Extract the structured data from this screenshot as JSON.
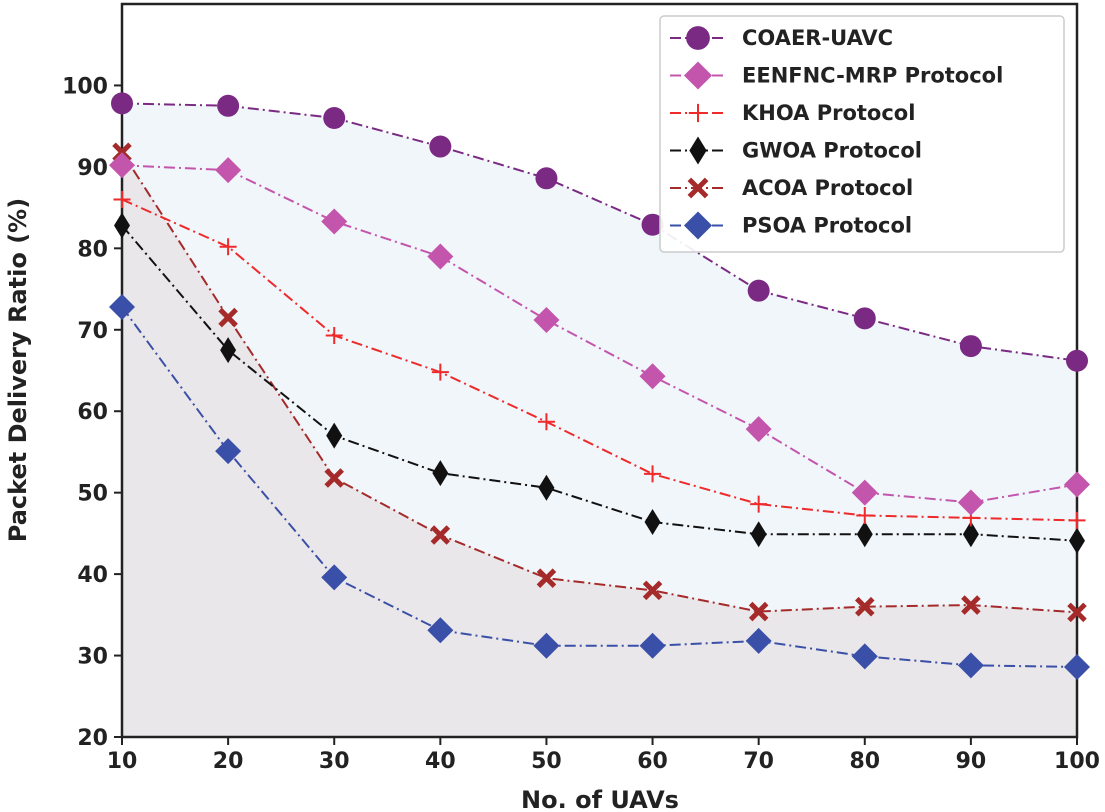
{
  "chart_data": {
    "type": "line",
    "title": "",
    "xlabel": "No. of UAVs",
    "ylabel": "Packet Delivery Ratio (%)",
    "xlim": [
      10,
      100
    ],
    "ylim": [
      20,
      110
    ],
    "x": [
      10,
      20,
      30,
      40,
      50,
      60,
      70,
      80,
      90,
      100
    ],
    "xticks": [
      "10",
      "20",
      "30",
      "40",
      "50",
      "60",
      "70",
      "80",
      "90",
      "100"
    ],
    "yticks": [
      "20",
      "30",
      "40",
      "50",
      "60",
      "70",
      "80",
      "90",
      "100"
    ],
    "grid": false,
    "legend_position": "top-right",
    "series": [
      {
        "name": "COAER-UAVC",
        "color": "#7b2a84",
        "marker": "circle",
        "values": [
          97.8,
          97.5,
          96.0,
          92.5,
          88.6,
          82.9,
          74.8,
          71.4,
          68.0,
          66.2
        ]
      },
      {
        "name": "EENFNC-MRP Protocol",
        "color": "#c455ac",
        "marker": "diamond",
        "values": [
          90.2,
          89.6,
          83.3,
          79.0,
          71.2,
          64.3,
          57.8,
          50.0,
          48.8,
          51.0
        ]
      },
      {
        "name": "KHOA Protocol",
        "color": "#ee2a2a",
        "marker": "plus",
        "values": [
          86.0,
          80.2,
          69.3,
          64.8,
          58.7,
          52.3,
          48.6,
          47.2,
          46.9,
          46.6
        ]
      },
      {
        "name": "GWOA Protocol",
        "color": "#111111",
        "marker": "thin-diamond",
        "values": [
          82.8,
          67.5,
          57.0,
          52.4,
          50.6,
          46.4,
          44.9,
          44.9,
          44.9,
          44.1
        ]
      },
      {
        "name": "ACOA Protocol",
        "color": "#a52a2a",
        "marker": "x",
        "values": [
          91.8,
          71.5,
          51.8,
          44.8,
          39.5,
          38.0,
          35.4,
          36.0,
          36.2,
          35.3
        ]
      },
      {
        "name": "PSOA Protocol",
        "color": "#3a50a8",
        "marker": "diamond",
        "values": [
          72.8,
          55.1,
          39.6,
          33.1,
          31.2,
          31.2,
          31.8,
          29.9,
          28.8,
          28.6
        ]
      }
    ],
    "fills": [
      {
        "series": "COAER-UAVC",
        "color": "#aac6e6"
      },
      {
        "series": "ACOA Protocol",
        "color": "#c79a96"
      }
    ]
  }
}
